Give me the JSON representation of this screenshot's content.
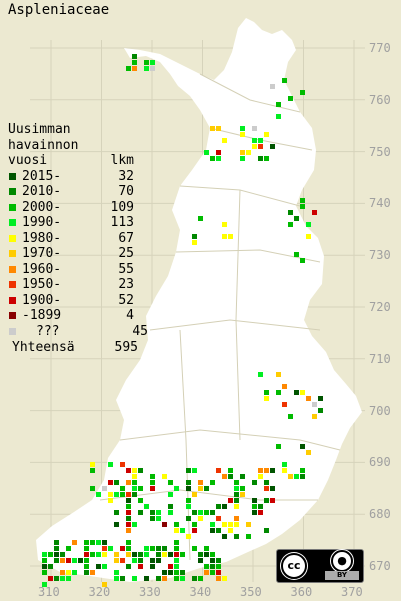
{
  "title": "Aspleniaceae",
  "legend": {
    "header": [
      "Uusimman",
      "havainnon",
      "vuosi"
    ],
    "count_header": "lkm",
    "entries": [
      {
        "label": "2015-",
        "count": "32",
        "color": "#005500"
      },
      {
        "label": "2010-",
        "count": "70",
        "color": "#008800"
      },
      {
        "label": "2000-",
        "count": "109",
        "color": "#00bb00"
      },
      {
        "label": "1990-",
        "count": "113",
        "color": "#00ee22"
      },
      {
        "label": "1980-",
        "count": "67",
        "color": "#ffff00"
      },
      {
        "label": "1970-",
        "count": "25",
        "color": "#ffcc00"
      },
      {
        "label": "1960-",
        "count": "55",
        "color": "#ff8800"
      },
      {
        "label": "1950-",
        "count": "23",
        "color": "#ee3300"
      },
      {
        "label": "1900-",
        "count": "52",
        "color": "#cc0000"
      },
      {
        "label": "-1899",
        "count": "4",
        "color": "#880000"
      },
      {
        "label": "???",
        "count": "45",
        "color": "#cccccc"
      }
    ],
    "total_label": "Yhteensä",
    "total_count": "595"
  },
  "y_axis": [
    "770",
    "760",
    "750",
    "740",
    "730",
    "720",
    "710",
    "700",
    "690",
    "680",
    "670"
  ],
  "x_axis": [
    "310",
    "320",
    "330",
    "340",
    "350",
    "360",
    "370"
  ],
  "license": {
    "cc": "cc",
    "by_icon": "person-icon",
    "by": "BY"
  }
}
